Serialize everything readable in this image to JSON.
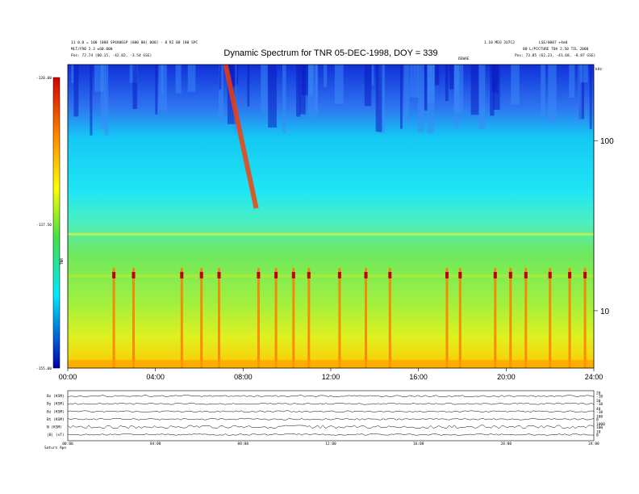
{
  "header": {
    "title": "Dynamic Spectrum for TNR 05-DEC-1998, DOY = 339",
    "left_line1": "11 0.0 = 100 [000 SP4806SP (000 00) 000] - 0 RI 00 [00 SPC",
    "left_line2": "MLT/FRB 2.3 ±60.000",
    "left_line3": "Pos:   72.74 (00.15, -42.82, -3.54 GSE)",
    "right_line1": "1.10 MEO 2U7C2",
    "right_line2": "LSE/0007 +4e0",
    "right_line3": "00 L/PICTURE  T0A 2.50 TIL 2000",
    "right_line4": "Pos:   73.05 (62.23, -41.68, -8.87 GSE)",
    "marker": "DEWAE"
  },
  "chart_data": [
    {
      "type": "heatmap",
      "title": "Dynamic Spectrum for TNR 05-DEC-1998, DOY = 339",
      "x_ticks": [
        "00:00",
        "04:00",
        "08:00",
        "12:00",
        "16:00",
        "20:00",
        "24:00"
      ],
      "y_ticks": [
        "100",
        "10"
      ],
      "y_unit": "kHz",
      "ylim": [
        4.6,
        280
      ],
      "y_scale": "log",
      "colorbar": {
        "ticks": [
          "-120.00",
          "-137.50",
          "-155.00"
        ],
        "label": "TNR",
        "range": [
          -155,
          -120
        ]
      },
      "features": {
        "bursts": [
          2.1,
          3.0,
          5.2,
          6.1,
          6.9,
          8.7,
          9.5,
          10.3,
          11.0,
          12.4,
          13.6,
          14.7,
          17.3,
          17.9,
          19.5,
          20.2,
          20.9,
          22.0,
          22.9,
          23.6
        ],
        "drift_lines": [
          {
            "start_h": 7.2,
            "start_v": 280,
            "end_h": 8.6,
            "end_v": 40
          }
        ]
      }
    },
    {
      "type": "line",
      "title": "",
      "xlim": [
        0,
        24
      ],
      "x_ticks": [
        "00:00",
        "04:00",
        "08:00",
        "12:00",
        "16:00",
        "20:00",
        "24:00"
      ],
      "series": [
        {
          "name": "Bx (KSM)",
          "right_ticks": [
            "20",
            "-10"
          ]
        },
        {
          "name": "By (KSM)",
          "right_ticks": [
            "30",
            "-10"
          ]
        },
        {
          "name": "Bz (KSM)",
          "right_ticks": [
            "40",
            "-10"
          ]
        },
        {
          "name": "Bt (KSM)",
          "right_ticks": [
            "100",
            "0"
          ]
        },
        {
          "name": "N (KSM)",
          "right_ticks": [
            "1000",
            "100"
          ]
        },
        {
          "name": "|B| (nT)",
          "right_ticks": [
            "10",
            "0"
          ]
        }
      ],
      "bottom_left": "Saturn Apo"
    }
  ]
}
